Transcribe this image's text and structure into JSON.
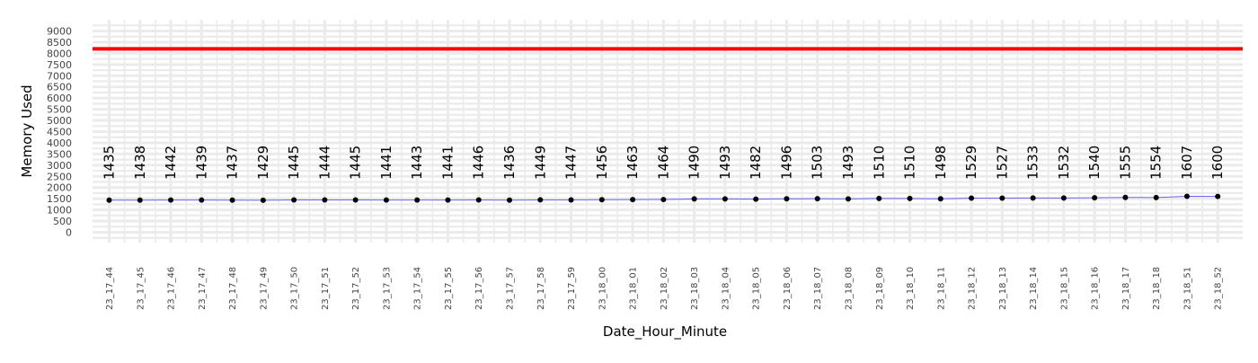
{
  "chart_data": {
    "type": "line",
    "xlabel": "Date_Hour_Minute",
    "ylabel": "Memory Used",
    "ylim": [
      0,
      9000
    ],
    "yticks": [
      0,
      500,
      1000,
      1500,
      2000,
      2500,
      3000,
      3500,
      4000,
      4500,
      5000,
      5500,
      6000,
      6500,
      7000,
      7500,
      8000,
      8500,
      9000
    ],
    "grid": true,
    "threshold": 8200,
    "colors": {
      "line": "#6666ee",
      "points": "#000000",
      "threshold": "#ff0000",
      "grid": "#ebebeb"
    },
    "categories": [
      "23_17_44",
      "23_17_45",
      "23_17_46",
      "23_17_47",
      "23_17_48",
      "23_17_49",
      "23_17_50",
      "23_17_51",
      "23_17_52",
      "23_17_53",
      "23_17_54",
      "23_17_55",
      "23_17_56",
      "23_17_57",
      "23_17_58",
      "23_17_59",
      "23_18_00",
      "23_18_01",
      "23_18_02",
      "23_18_03",
      "23_18_04",
      "23_18_05",
      "23_18_06",
      "23_18_07",
      "23_18_08",
      "23_18_09",
      "23_18_10",
      "23_18_11",
      "23_18_12",
      "23_18_13",
      "23_18_14",
      "23_18_15",
      "23_18_16",
      "23_18_17",
      "23_18_18",
      "23_18_51",
      "23_18_52"
    ],
    "values": [
      1435,
      1438,
      1442,
      1439,
      1437,
      1429,
      1445,
      1444,
      1445,
      1441,
      1443,
      1441,
      1446,
      1436,
      1449,
      1447,
      1456,
      1463,
      1464,
      1490,
      1493,
      1482,
      1496,
      1503,
      1493,
      1510,
      1510,
      1498,
      1529,
      1527,
      1533,
      1532,
      1540,
      1555,
      1554,
      1607,
      1600
    ]
  }
}
